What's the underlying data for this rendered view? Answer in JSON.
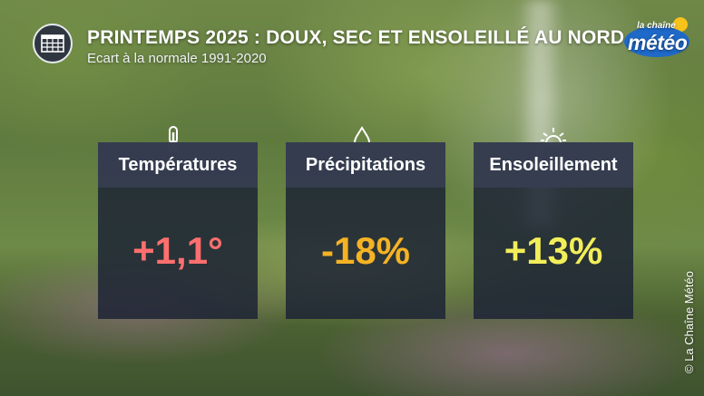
{
  "header": {
    "title": "PRINTEMPS 2025 : DOUX, SEC ET ENSOLEILLÉ AU NORD",
    "subtitle": "Ecart à la normale 1991-2020",
    "icon": "calendar-grid-icon"
  },
  "logo": {
    "line1": "la chaîne",
    "line2": "météo"
  },
  "cards": [
    {
      "label": "Températures",
      "value": "+1,1°",
      "icon": "thermometer-icon",
      "color": "#ff6f6f"
    },
    {
      "label": "Précipitations",
      "value": "-18%",
      "icon": "droplet-icon",
      "color": "#f5b324"
    },
    {
      "label": "Ensoleillement",
      "value": "+13%",
      "icon": "sun-icon",
      "color": "#f2ee5a"
    }
  ],
  "credit": "© La Chaîne Météo"
}
